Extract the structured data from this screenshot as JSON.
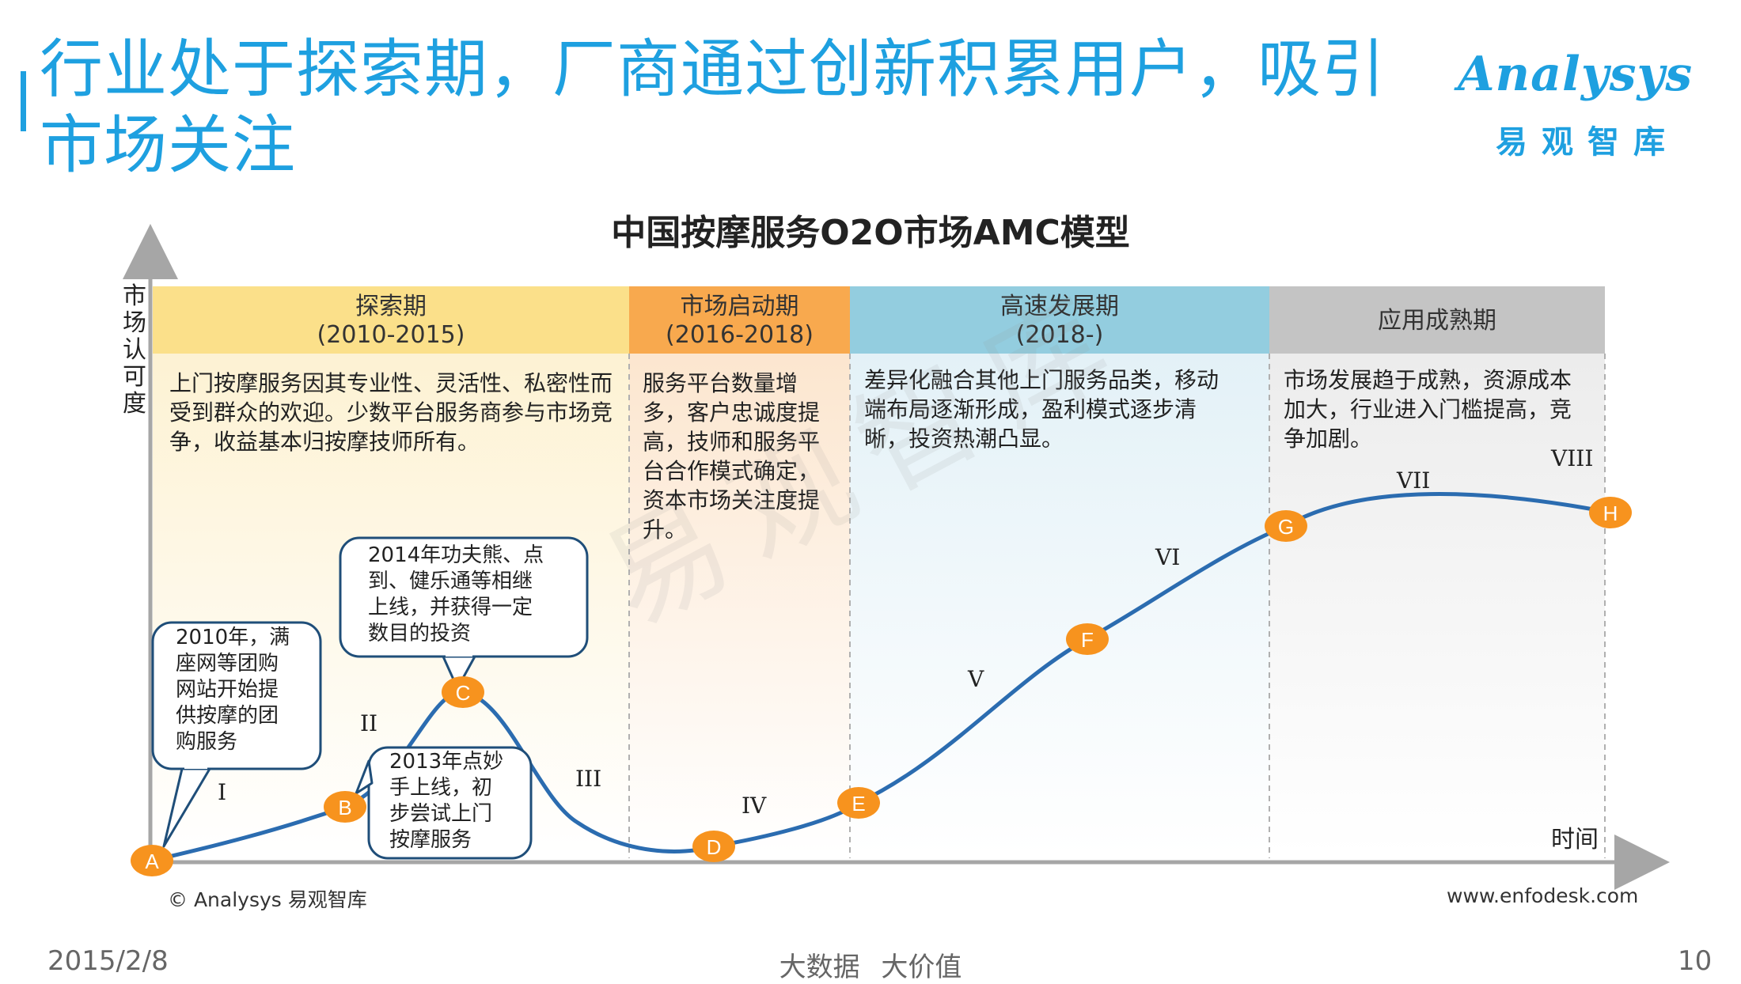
{
  "header": {
    "title": "行业处于探索期，厂商通过创新积累用户，吸引市场关注",
    "logo_en": "Analysys",
    "logo_cn": "易观智库"
  },
  "diagram": {
    "title": "中国按摩服务O2O市场AMC模型",
    "y_axis_label": "市场认可度",
    "x_axis_label": "时间",
    "watermark": "易观智库",
    "phases": [
      {
        "name": "探索期",
        "period": "(2010-2015)",
        "color": "#fbe08a",
        "description": "上门按摩服务因其专业性、灵活性、私密性而受到群众的欢迎。少数平台服务商参与市场竞争，收益基本归按摩技师所有。"
      },
      {
        "name": "市场启动期",
        "period": "(2016-2018)",
        "color": "#f8a94e",
        "description": "服务平台数量增多，客户忠诚度提高，技师和服务平台合作模式确定，资本市场关注度提升。"
      },
      {
        "name": "高速发展期",
        "period": "(2018-)",
        "color": "#93cddf",
        "description": "差异化融合其他上门服务品类，移动端布局逐渐形成，盈利模式逐步清晰，投资热潮凸显。"
      },
      {
        "name": "应用成熟期",
        "period": "",
        "color": "#c4c4c4",
        "description": "市场发展趋于成熟，资源成本加大，行业进入门槛提高，竞争加剧。"
      }
    ],
    "points": [
      "A",
      "B",
      "C",
      "D",
      "E",
      "F",
      "G",
      "H"
    ],
    "segments": [
      "I",
      "II",
      "III",
      "IV",
      "V",
      "VI",
      "VII",
      "VIII"
    ],
    "callouts": [
      {
        "id": "callout-2010",
        "text": "2010年，满\n座网等团购\n网站开始提\n供按摩的团\n购服务"
      },
      {
        "id": "callout-2014",
        "text": "2014年功夫熊、点\n到、健乐通等相继\n上线，并获得一定\n数目的投资"
      },
      {
        "id": "callout-2013",
        "text": "2013年点妙\n手上线，初\n步尝试上门\n按摩服务"
      }
    ],
    "colors": {
      "curve": "#2b6cb0",
      "marker": "#f7931e",
      "axis": "#a6a6a6"
    }
  },
  "footer": {
    "copyright": "© Analysys 易观智库",
    "website": "www.enfodesk.com",
    "date": "2015/2/8",
    "slogan": "大数据 大价值",
    "page": "10"
  }
}
